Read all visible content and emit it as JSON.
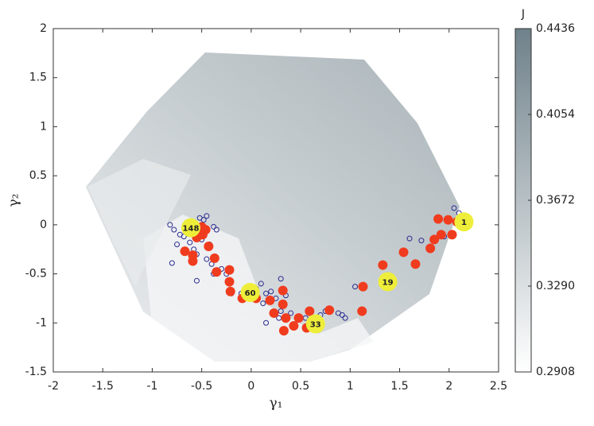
{
  "chart_data": {
    "type": "scatter",
    "xlabel": "γ₁",
    "ylabel": "γ₂",
    "xlim": [
      -2,
      2.5
    ],
    "ylim": [
      -1.5,
      2
    ],
    "xticks": [
      -2,
      -1.5,
      -1,
      -0.5,
      0,
      0.5,
      1,
      1.5,
      2,
      2.5
    ],
    "yticks": [
      -1.5,
      -1,
      -0.5,
      0,
      0.5,
      1,
      1.5,
      2
    ],
    "colorbar": {
      "label": "J",
      "lim": [
        0.2908,
        0.4436
      ],
      "ticks": [
        0.2908,
        {
          "value": 0.329,
          "label": "0.3290"
        },
        0.3672,
        0.4054,
        0.4436
      ],
      "colors": [
        "#ffffff",
        "#6f818a"
      ]
    },
    "series": [
      {
        "color": "#2b2b8f",
        "marker": "open",
        "x": [
          -0.82,
          -0.78,
          -0.72,
          -0.68,
          -0.75,
          -0.8,
          -0.62,
          -0.58,
          -0.55,
          -0.52,
          -0.48,
          -0.45,
          -0.5,
          -0.42,
          -0.38,
          -0.35,
          -0.45,
          -0.4,
          -0.38,
          -0.55,
          -0.3,
          -0.25,
          -0.22,
          -0.2,
          -0.1,
          0.05,
          0.1,
          0.15,
          0.2,
          0.12,
          0.25,
          0.3,
          0.35,
          0.3,
          0.28,
          0.4,
          0.55,
          0.6,
          0.7,
          0.75,
          0.88,
          0.92,
          0.95,
          1.05,
          1.6,
          1.72,
          2.05,
          2.1,
          1.95,
          0.15
        ],
        "values": [
          0.0,
          -0.05,
          -0.1,
          -0.12,
          -0.2,
          -0.39,
          -0.18,
          -0.25,
          -0.3,
          0.07,
          0.05,
          0.09,
          -0.15,
          -0.2,
          -0.02,
          -0.05,
          -0.35,
          -0.4,
          -0.5,
          -0.57,
          -0.45,
          -0.5,
          -0.6,
          -0.7,
          -0.7,
          -0.65,
          -0.6,
          -0.7,
          -0.68,
          -0.8,
          -0.75,
          -0.55,
          -0.72,
          -0.88,
          -0.95,
          -0.9,
          -0.95,
          -0.98,
          -0.92,
          -0.88,
          -0.9,
          -0.92,
          -0.95,
          -0.63,
          -0.14,
          -0.16,
          0.17,
          0.12,
          -0.12,
          -1.0
        ]
      },
      {
        "color": "#f03c1e",
        "marker": "filled",
        "x": [
          1.89,
          1.99,
          2.08,
          2.03,
          1.92,
          1.85,
          1.81,
          1.66,
          1.54,
          1.33,
          1.13,
          1.12,
          0.79,
          0.59,
          0.48,
          0.43,
          0.35,
          0.56,
          0.33,
          0.23,
          0.32,
          0.32,
          0.19,
          0.05,
          -0.09,
          -0.21,
          -0.22,
          -0.22,
          -0.35,
          -0.37,
          -0.59,
          -0.59,
          -0.67,
          -0.55,
          -0.49,
          -0.46,
          -0.43,
          -0.5
        ],
        "values": [
          0.06,
          0.05,
          0.03,
          -0.1,
          -0.1,
          -0.15,
          -0.24,
          -0.4,
          -0.28,
          -0.41,
          -0.63,
          -0.88,
          -0.87,
          -0.88,
          -0.95,
          -1.03,
          -0.95,
          -1.05,
          -1.08,
          -0.9,
          -0.81,
          -0.67,
          -0.77,
          -0.75,
          -0.75,
          -0.68,
          -0.58,
          -0.46,
          -0.48,
          -0.34,
          -0.37,
          -0.31,
          -0.27,
          -0.13,
          -0.1,
          -0.05,
          -0.22,
          -0.02
        ]
      },
      {
        "color": "#eeee3a",
        "marker": "labeled",
        "x": [
          -0.61,
          -0.01,
          0.65,
          1.38,
          2.15
        ],
        "values": [
          -0.03,
          -0.69,
          -1.01,
          -0.58,
          0.03
        ],
        "labels": [
          "148",
          "60",
          "33",
          "19",
          "1"
        ]
      }
    ]
  }
}
